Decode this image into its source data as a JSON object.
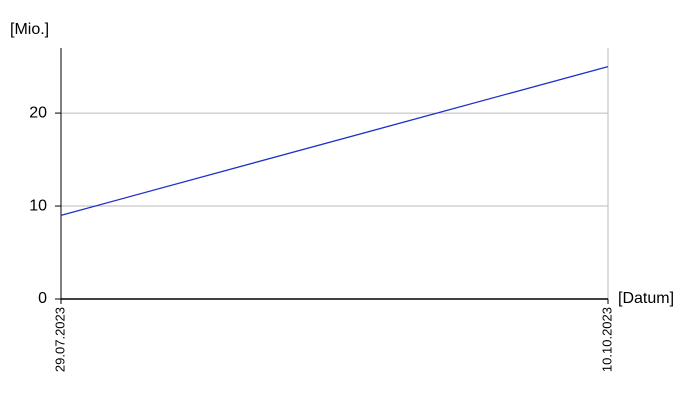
{
  "chart_data": {
    "type": "line",
    "x_label": "[Datum]",
    "y_label": "[Mio.]",
    "categories": [
      "29.07.2023",
      "10.10.2023"
    ],
    "series": [
      {
        "name": null,
        "color": "#1f2fcc",
        "values": [
          9,
          25
        ]
      }
    ],
    "ylim": [
      0,
      27
    ],
    "yticks": [
      0,
      10,
      20
    ],
    "grid": true
  }
}
